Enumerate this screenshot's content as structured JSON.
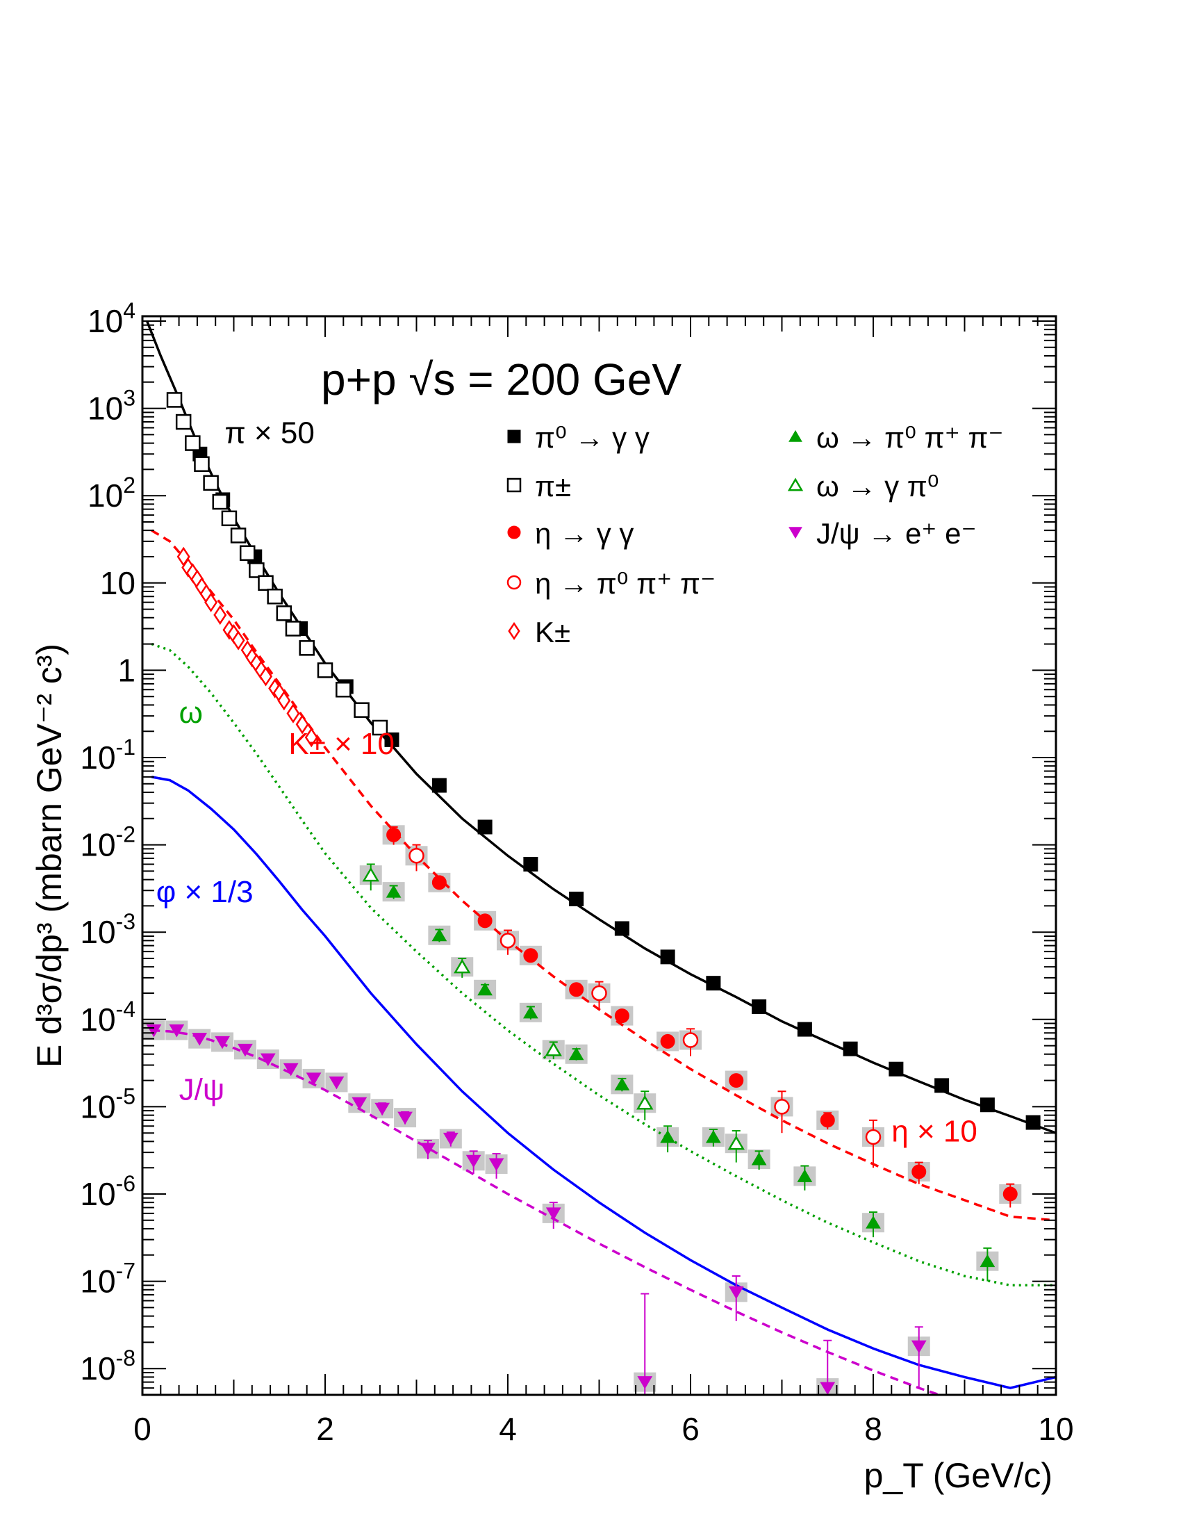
{
  "chart_data": {
    "type": "scatter",
    "title": "p+p √s = 200 GeV",
    "xlabel": "p_T (GeV/c)",
    "ylabel": "E d³σ/dp³ (mbarn GeV⁻² c³)",
    "xlim": [
      0,
      10
    ],
    "ylim": [
      5e-09,
      10000
    ],
    "yscale": "log",
    "grid": false,
    "legend_position": "top-right",
    "x_ticks": [
      "0",
      "2",
      "4",
      "6",
      "8",
      "10"
    ],
    "y_ticks": [
      {
        "base": "10",
        "exp": "4"
      },
      {
        "base": "10",
        "exp": "3"
      },
      {
        "base": "10",
        "exp": "2"
      },
      {
        "base": "10",
        "exp": ""
      },
      {
        "base": "1",
        "exp": ""
      },
      {
        "base": "10",
        "exp": "-1"
      },
      {
        "base": "10",
        "exp": "-2"
      },
      {
        "base": "10",
        "exp": "-3"
      },
      {
        "base": "10",
        "exp": "-4"
      },
      {
        "base": "10",
        "exp": "-5"
      },
      {
        "base": "10",
        "exp": "-6"
      },
      {
        "base": "10",
        "exp": "-7"
      },
      {
        "base": "10",
        "exp": "-8"
      }
    ],
    "legend": [
      {
        "marker": "square-filled",
        "color": "#000000",
        "text": "π⁰ → γ γ"
      },
      {
        "marker": "square-open",
        "color": "#000000",
        "text": "π±"
      },
      {
        "marker": "circle-filled",
        "color": "#ff0000",
        "text": "η → γ γ"
      },
      {
        "marker": "circle-open",
        "color": "#ff0000",
        "text": "η → π⁰ π⁺ π⁻"
      },
      {
        "marker": "diamond-open",
        "color": "#ff0000",
        "text": "K±"
      },
      {
        "marker": "triangle-filled",
        "color": "#00a000",
        "text": "ω → π⁰ π⁺ π⁻"
      },
      {
        "marker": "triangle-open",
        "color": "#00a000",
        "text": "ω → γ π⁰"
      },
      {
        "marker": "triangle-down-filled",
        "color": "#cc00cc",
        "text": "J/ψ → e⁺ e⁻"
      }
    ],
    "annotations": [
      {
        "text": "π × 50",
        "color": "#000000",
        "x": 0.9,
        "y": 400
      },
      {
        "text": "K± × 10",
        "color": "#ff0000",
        "x": 1.6,
        "y": 0.11
      },
      {
        "text": "ω",
        "color": "#00a000",
        "x": 0.4,
        "y": 0.25
      },
      {
        "text": "φ × 1/3",
        "color": "#0000ff",
        "x": 0.15,
        "y": 0.0022
      },
      {
        "text": "J/ψ",
        "color": "#cc00cc",
        "x": 0.4,
        "y": 1.2e-05
      },
      {
        "text": "η × 10",
        "color": "#ff0000",
        "x": 8.2,
        "y": 4e-06
      }
    ],
    "series": [
      {
        "name": "π⁰ → γ γ",
        "marker": "square-filled",
        "color": "#000000",
        "x": [
          0.63,
          0.88,
          1.23,
          1.73,
          2.23,
          2.73,
          3.25,
          3.75,
          4.25,
          4.75,
          5.25,
          5.75,
          6.25,
          6.75,
          7.25,
          7.75,
          8.25,
          8.75,
          9.25,
          9.75
        ],
        "y": [
          300,
          90,
          20,
          3,
          0.65,
          0.16,
          0.048,
          0.016,
          0.006,
          0.0024,
          0.0011,
          0.00052,
          0.00026,
          0.00014,
          7.7e-05,
          4.6e-05,
          2.7e-05,
          1.75e-05,
          1.05e-05,
          6.6e-06
        ]
      },
      {
        "name": "π±",
        "marker": "square-open",
        "color": "#000000",
        "x": [
          0.35,
          0.45,
          0.55,
          0.65,
          0.75,
          0.85,
          0.95,
          1.05,
          1.15,
          1.25,
          1.35,
          1.45,
          1.55,
          1.65,
          1.8,
          2.0,
          2.2,
          2.4,
          2.6
        ],
        "y": [
          1250,
          700,
          400,
          230,
          140,
          85,
          55,
          35,
          22,
          14,
          10,
          7,
          4.5,
          3,
          1.8,
          1.0,
          0.6,
          0.35,
          0.22
        ]
      },
      {
        "name": "η → γ γ",
        "marker": "circle-filled",
        "color": "#ff0000",
        "x": [
          2.75,
          3.25,
          3.75,
          4.25,
          4.75,
          5.25,
          5.75,
          6.5,
          7.5,
          8.5,
          9.5
        ],
        "y": [
          0.013,
          0.0037,
          0.00135,
          0.00054,
          0.00022,
          0.00011,
          5.6e-05,
          2e-05,
          7e-06,
          1.8e-06,
          1e-06
        ],
        "err": [
          0.003,
          0.0006,
          0.0002,
          8e-05,
          3e-05,
          1.5e-05,
          8e-06,
          3e-06,
          1.5e-06,
          5e-07,
          3e-07
        ]
      },
      {
        "name": "η → π⁰ π⁺ π⁻",
        "marker": "circle-open",
        "color": "#ff0000",
        "x": [
          3.0,
          4.0,
          5.0,
          6.0,
          7.0,
          8.0
        ],
        "y": [
          0.0075,
          0.0008,
          0.0002,
          5.8e-05,
          1e-05,
          4.5e-06
        ],
        "err": [
          0.0025,
          0.00025,
          7e-05,
          2e-05,
          5e-06,
          2.5e-06
        ]
      },
      {
        "name": "K±",
        "marker": "diamond-open",
        "color": "#ff0000",
        "x": [
          0.45,
          0.5,
          0.55,
          0.6,
          0.65,
          0.7,
          0.75,
          0.85,
          0.95,
          1.0,
          1.05,
          1.15,
          1.2,
          1.25,
          1.3,
          1.35,
          1.45,
          1.5,
          1.55,
          1.65,
          1.75,
          1.85
        ],
        "y": [
          20,
          15,
          13,
          11,
          9,
          7.5,
          6,
          4.3,
          2.9,
          2.6,
          2.2,
          1.7,
          1.4,
          1.2,
          1.0,
          0.85,
          0.62,
          0.55,
          0.45,
          0.32,
          0.24,
          0.17
        ]
      },
      {
        "name": "ω → π⁰ π⁺ π⁻",
        "marker": "triangle-filled",
        "color": "#00a000",
        "x": [
          2.75,
          3.25,
          3.75,
          4.25,
          4.75,
          5.25,
          5.75,
          6.25,
          6.75,
          7.25,
          8.0,
          9.25
        ],
        "y": [
          0.0029,
          0.00092,
          0.00022,
          0.00012,
          4e-05,
          1.8e-05,
          4.5e-06,
          4.5e-06,
          2.5e-06,
          1.6e-06,
          4.7e-07,
          1.7e-07
        ],
        "err": [
          0.0005,
          0.00015,
          3e-05,
          2e-05,
          6e-06,
          3e-06,
          1.5e-06,
          1e-06,
          6e-07,
          5e-07,
          1.5e-07,
          7e-08
        ]
      },
      {
        "name": "ω → γ π⁰",
        "marker": "triangle-open",
        "color": "#00a000",
        "x": [
          2.5,
          3.5,
          4.5,
          5.5,
          6.5
        ],
        "y": [
          0.0045,
          0.0004,
          4.5e-05,
          1.1e-05,
          3.8e-06
        ],
        "err": [
          0.0015,
          0.0001,
          1e-05,
          4e-06,
          1.5e-06
        ]
      },
      {
        "name": "J/ψ → e⁺ e⁻",
        "marker": "triangle-down-filled",
        "color": "#cc00cc",
        "x": [
          0.125,
          0.375,
          0.625,
          0.875,
          1.125,
          1.375,
          1.625,
          1.875,
          2.125,
          2.375,
          2.625,
          2.875,
          3.125,
          3.375,
          3.625,
          3.875,
          4.5,
          5.5,
          6.5,
          7.5,
          8.5
        ],
        "y": [
          7.5e-05,
          7.5e-05,
          6e-05,
          5.5e-05,
          4.5e-05,
          3.5e-05,
          2.7e-05,
          2.1e-05,
          1.9e-05,
          1.1e-05,
          9.5e-06,
          7.5e-06,
          3.3e-06,
          4.3e-06,
          2.4e-06,
          2.2e-06,
          6e-07,
          7e-09,
          7.5e-08,
          6e-09,
          1.8e-08
        ],
        "err": [
          5e-06,
          5e-06,
          4e-06,
          4e-06,
          3e-06,
          3e-06,
          2e-06,
          2e-06,
          2e-06,
          1.5e-06,
          1.5e-06,
          1.2e-06,
          8e-07,
          8e-07,
          7e-07,
          7e-07,
          2e-07,
          6.5e-08,
          4e-08,
          1.5e-08,
          1.2e-08
        ]
      }
    ],
    "curves": [
      {
        "name": "",
        "color": "#000000",
        "style": "solid",
        "x": [
          0.05,
          0.2,
          0.4,
          0.6,
          0.8,
          1,
          1.25,
          1.5,
          1.75,
          2,
          2.25,
          2.5,
          2.75,
          3,
          3.5,
          4,
          4.5,
          5,
          5.5,
          6,
          6.5,
          7,
          7.5,
          8,
          8.5,
          9,
          9.5,
          10
        ],
        "y": [
          10000,
          4000,
          1300,
          400,
          140,
          55,
          20,
          7.5,
          3,
          1.2,
          0.55,
          0.25,
          0.13,
          0.065,
          0.02,
          0.0075,
          0.0031,
          0.0014,
          0.00065,
          0.00033,
          0.00018,
          9.5e-05,
          5.5e-05,
          3.2e-05,
          1.95e-05,
          1.2e-05,
          7.8e-06,
          5e-06
        ]
      },
      {
        "name": "",
        "color": "#ff0000",
        "style": "dashed",
        "x": [
          0.1,
          0.3,
          0.5,
          0.75,
          1,
          1.25,
          1.5,
          1.75,
          2,
          2.5,
          3,
          3.5,
          4,
          4.5,
          5,
          5.5,
          6,
          6.5,
          7,
          7.5,
          8,
          8.5,
          9,
          9.5,
          10
        ],
        "y": [
          40,
          30,
          17,
          8,
          3.8,
          1.6,
          0.7,
          0.3,
          0.13,
          0.028,
          0.0075,
          0.0023,
          0.0008,
          0.00031,
          0.00013,
          5.8e-05,
          2.7e-05,
          1.35e-05,
          7e-06,
          3.8e-06,
          2.2e-06,
          1.3e-06,
          8.5e-07,
          5.5e-07,
          5e-07
        ]
      },
      {
        "name": "",
        "color": "#00a000",
        "style": "dotted",
        "x": [
          0.1,
          0.3,
          0.5,
          0.75,
          1,
          1.25,
          1.5,
          1.75,
          2,
          2.5,
          3,
          3.5,
          4,
          4.5,
          5,
          5.5,
          6,
          6.5,
          7,
          7.5,
          8,
          8.5,
          9,
          9.5,
          10
        ],
        "y": [
          2.0,
          1.7,
          1.1,
          0.55,
          0.25,
          0.11,
          0.046,
          0.019,
          0.008,
          0.0019,
          0.0006,
          0.0002,
          7.5e-05,
          3.1e-05,
          1.35e-05,
          6.3e-06,
          3.1e-06,
          1.6e-06,
          8.5e-07,
          4.7e-07,
          2.8e-07,
          1.7e-07,
          1.15e-07,
          9e-08,
          9e-08
        ]
      },
      {
        "name": "",
        "color": "#0000ff",
        "style": "solid",
        "x": [
          0.1,
          0.3,
          0.5,
          0.75,
          1,
          1.25,
          1.5,
          1.75,
          2,
          2.5,
          3,
          3.5,
          4,
          4.5,
          5,
          5.5,
          6,
          6.5,
          7,
          7.5,
          8,
          8.5,
          9,
          9.5,
          10
        ],
        "y": [
          0.06,
          0.055,
          0.042,
          0.026,
          0.015,
          0.0078,
          0.0038,
          0.0018,
          0.0009,
          0.0002,
          5.2e-05,
          1.5e-05,
          5e-06,
          1.9e-06,
          8e-07,
          3.6e-07,
          1.75e-07,
          9e-08,
          5e-08,
          2.8e-08,
          1.7e-08,
          1.1e-08,
          8e-09,
          6e-09,
          8e-09
        ]
      },
      {
        "name": "",
        "color": "#cc00cc",
        "style": "dashed",
        "x": [
          0.1,
          0.3,
          0.5,
          0.75,
          1,
          1.25,
          1.5,
          1.75,
          2,
          2.5,
          3,
          3.5,
          4,
          4.5,
          5,
          5.5,
          6,
          6.5,
          7,
          7.5,
          8,
          8.5,
          9,
          9.5,
          10
        ],
        "y": [
          7.5e-05,
          7.3e-05,
          6.8e-05,
          5.8e-05,
          4.7e-05,
          3.7e-05,
          2.8e-05,
          2.1e-05,
          1.55e-05,
          8e-06,
          4e-06,
          2e-06,
          1e-06,
          5.2e-07,
          2.7e-07,
          1.45e-07,
          8e-08,
          4.5e-08,
          2.6e-08,
          1.55e-08,
          9.5e-09,
          6e-09,
          4e-09,
          2.7e-09,
          2e-09
        ]
      }
    ]
  }
}
